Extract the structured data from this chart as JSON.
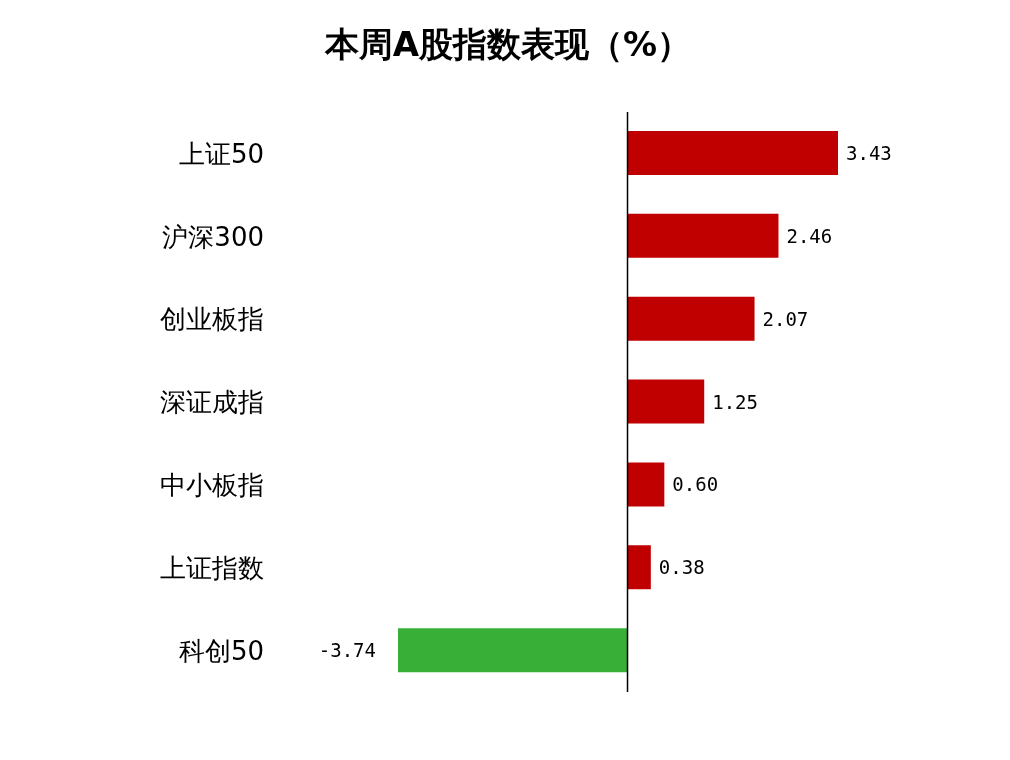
{
  "chart_data": {
    "type": "bar",
    "title": "本周A股指数表现（%）",
    "orientation": "horizontal",
    "categories": [
      "上证50",
      "沪深300",
      "创业板指",
      "深证成指",
      "中小板指",
      "上证指数",
      "科创50"
    ],
    "values": [
      3.43,
      2.46,
      2.07,
      1.25,
      0.6,
      0.38,
      -3.74
    ],
    "colors": [
      "#c00000",
      "#c00000",
      "#c00000",
      "#c00000",
      "#c00000",
      "#c00000",
      "#38b038"
    ],
    "value_labels": [
      "3.43",
      "2.46",
      "2.07",
      "1.25",
      "0.60",
      "0.38",
      "-3.74"
    ],
    "grid": false,
    "legend": false
  }
}
